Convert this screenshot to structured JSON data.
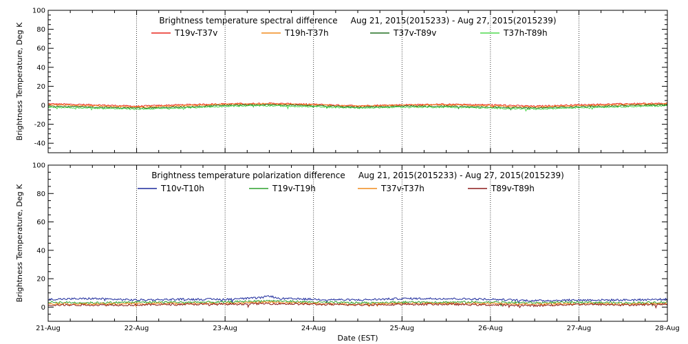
{
  "chart_data": [
    {
      "type": "line",
      "title": "Brightness temperature spectral difference     Aug 21, 2015(2015233) - Aug 27, 2015(2015239)",
      "xlabel": "",
      "ylabel": "Brightness Temperature, Deg K",
      "ylim": [
        -50,
        100
      ],
      "yticks": [
        -40,
        -20,
        0,
        20,
        40,
        60,
        80,
        100
      ],
      "xlim": [
        0,
        7
      ],
      "xtick_labels": [],
      "grid": "vertical dotted at day boundaries",
      "legend_position": "top",
      "series": [
        {
          "name": "T19v-T37v",
          "color": "#e8231c",
          "keypoints": [
            [
              0,
              1.5
            ],
            [
              0.5,
              0.5
            ],
            [
              1.0,
              -1.0
            ],
            [
              1.5,
              0.5
            ],
            [
              2.0,
              1.5
            ],
            [
              2.5,
              2.0
            ],
            [
              3.0,
              1.0
            ],
            [
              3.5,
              -0.5
            ],
            [
              4.0,
              0.5
            ],
            [
              4.5,
              1.0
            ],
            [
              5.0,
              0.5
            ],
            [
              5.5,
              -1.0
            ],
            [
              6.0,
              0.5
            ],
            [
              6.5,
              1.5
            ],
            [
              7.0,
              2.0
            ]
          ]
        },
        {
          "name": "T19h-T37h",
          "color": "#f08a1c",
          "keypoints": [
            [
              0,
              0.5
            ],
            [
              0.5,
              -0.5
            ],
            [
              1.0,
              -2.0
            ],
            [
              1.5,
              -0.5
            ],
            [
              2.0,
              1.0
            ],
            [
              2.5,
              1.5
            ],
            [
              3.0,
              0.5
            ],
            [
              3.5,
              -1.0
            ],
            [
              4.0,
              0.0
            ],
            [
              4.5,
              0.5
            ],
            [
              5.0,
              -0.5
            ],
            [
              5.5,
              -2.0
            ],
            [
              6.0,
              -0.5
            ],
            [
              6.5,
              0.5
            ],
            [
              7.0,
              1.5
            ]
          ]
        },
        {
          "name": "T37v-T89v",
          "color": "#1f6e1f",
          "keypoints": [
            [
              0,
              -1.0
            ],
            [
              0.5,
              -2.0
            ],
            [
              1.0,
              -3.0
            ],
            [
              1.5,
              -2.0
            ],
            [
              2.0,
              0.0
            ],
            [
              2.5,
              0.5
            ],
            [
              3.0,
              -0.5
            ],
            [
              3.5,
              -2.0
            ],
            [
              4.0,
              -1.0
            ],
            [
              4.5,
              -1.0
            ],
            [
              5.0,
              -2.0
            ],
            [
              5.5,
              -3.0
            ],
            [
              6.0,
              -1.5
            ],
            [
              6.5,
              -0.5
            ],
            [
              7.0,
              0.5
            ]
          ]
        },
        {
          "name": "T37h-T89h",
          "color": "#4cd84c",
          "keypoints": [
            [
              0,
              -2.0
            ],
            [
              0.5,
              -3.0
            ],
            [
              1.0,
              -4.0
            ],
            [
              1.5,
              -3.0
            ],
            [
              2.0,
              -1.0
            ],
            [
              2.5,
              -0.5
            ],
            [
              3.0,
              -1.5
            ],
            [
              3.5,
              -3.0
            ],
            [
              4.0,
              -2.0
            ],
            [
              4.5,
              -2.0
            ],
            [
              5.0,
              -3.0
            ],
            [
              5.5,
              -4.0
            ],
            [
              6.0,
              -2.5
            ],
            [
              6.5,
              -1.5
            ],
            [
              7.0,
              -0.5
            ]
          ]
        }
      ]
    },
    {
      "type": "line",
      "title": "Brightness temperature polarization difference     Aug 21, 2015(2015233) - Aug 27, 2015(2015239)",
      "xlabel": "Date (EST)",
      "ylabel": "Brightness Temperature, Deg K",
      "ylim": [
        -10,
        100
      ],
      "yticks": [
        0,
        20,
        40,
        60,
        80,
        100
      ],
      "xlim": [
        0,
        7
      ],
      "xtick_labels": [
        "21-Aug",
        "22-Aug",
        "23-Aug",
        "24-Aug",
        "25-Aug",
        "26-Aug",
        "27-Aug",
        "28-Aug"
      ],
      "grid": "vertical dotted at day boundaries",
      "legend_position": "top",
      "series": [
        {
          "name": "T10v-T10h",
          "color": "#1c2a9c",
          "keypoints": [
            [
              0,
              5.5
            ],
            [
              0.5,
              6.0
            ],
            [
              1.0,
              5.0
            ],
            [
              1.5,
              5.5
            ],
            [
              2.0,
              5.5
            ],
            [
              2.4,
              6.5
            ],
            [
              2.5,
              8.0
            ],
            [
              2.6,
              6.0
            ],
            [
              3.0,
              5.5
            ],
            [
              3.5,
              5.0
            ],
            [
              4.0,
              6.0
            ],
            [
              4.5,
              6.0
            ],
            [
              5.0,
              5.5
            ],
            [
              5.5,
              4.5
            ],
            [
              6.0,
              5.0
            ],
            [
              6.5,
              5.0
            ],
            [
              7.0,
              5.5
            ]
          ]
        },
        {
          "name": "T19v-T19h",
          "color": "#2ca02c",
          "keypoints": [
            [
              0,
              3.5
            ],
            [
              0.5,
              3.0
            ],
            [
              1.0,
              3.5
            ],
            [
              1.5,
              3.5
            ],
            [
              2.0,
              3.5
            ],
            [
              2.5,
              4.5
            ],
            [
              3.0,
              3.5
            ],
            [
              3.5,
              3.0
            ],
            [
              4.0,
              3.5
            ],
            [
              4.5,
              3.5
            ],
            [
              5.0,
              3.5
            ],
            [
              5.5,
              3.0
            ],
            [
              6.0,
              3.5
            ],
            [
              6.5,
              3.0
            ],
            [
              7.0,
              3.5
            ]
          ]
        },
        {
          "name": "T37v-T37h",
          "color": "#f08a1c",
          "keypoints": [
            [
              0,
              2.5
            ],
            [
              0.5,
              2.0
            ],
            [
              1.0,
              2.5
            ],
            [
              1.5,
              2.5
            ],
            [
              2.0,
              2.5
            ],
            [
              2.5,
              3.5
            ],
            [
              3.0,
              2.5
            ],
            [
              3.5,
              2.0
            ],
            [
              4.0,
              2.5
            ],
            [
              4.5,
              2.5
            ],
            [
              5.0,
              2.5
            ],
            [
              5.5,
              2.0
            ],
            [
              6.0,
              2.5
            ],
            [
              6.5,
              2.0
            ],
            [
              7.0,
              2.5
            ]
          ]
        },
        {
          "name": "T89v-T89h",
          "color": "#8b1a1a",
          "keypoints": [
            [
              0,
              1.5
            ],
            [
              0.5,
              1.5
            ],
            [
              1.0,
              1.5
            ],
            [
              1.5,
              2.0
            ],
            [
              2.0,
              2.0
            ],
            [
              2.5,
              2.5
            ],
            [
              3.0,
              2.0
            ],
            [
              3.5,
              1.5
            ],
            [
              4.0,
              2.0
            ],
            [
              4.5,
              2.0
            ],
            [
              5.0,
              1.5
            ],
            [
              5.5,
              1.0
            ],
            [
              6.0,
              2.0
            ],
            [
              6.5,
              1.5
            ],
            [
              7.0,
              2.0
            ]
          ]
        }
      ]
    }
  ]
}
